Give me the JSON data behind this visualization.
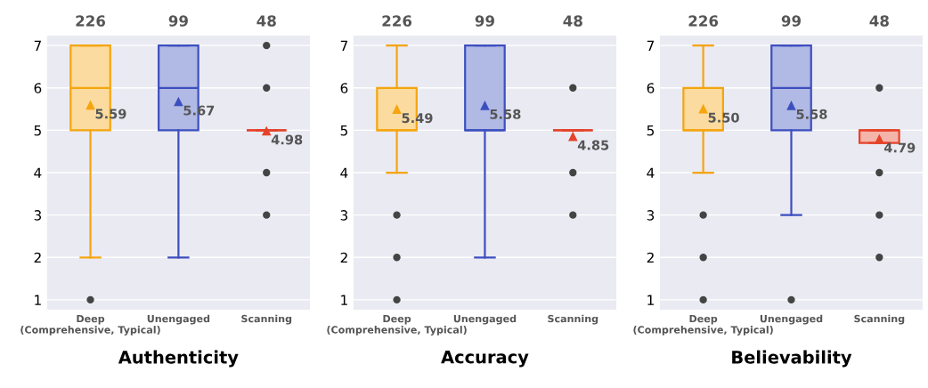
{
  "chart_data": [
    {
      "type": "box",
      "xlabel": "Authenticity",
      "categories": [
        "Deep\n(Comprehensive, Typical)",
        "Unengaged",
        "Scanning"
      ],
      "colors": [
        "#f5a50f",
        "#3d4fbf",
        "#e5432a"
      ],
      "ylim": [
        0.75,
        7.25
      ],
      "yticks": [
        1,
        2,
        3,
        4,
        5,
        6,
        7
      ],
      "grid": "y",
      "marker": "triangle",
      "boxes": [
        {
          "low": 2,
          "q1": 5,
          "median": 6,
          "q3": 7,
          "high": 7,
          "mean": 5.59,
          "outliers": [
            1
          ]
        },
        {
          "low": 2,
          "q1": 5,
          "median": 6,
          "q3": 7,
          "high": 7,
          "mean": 5.67
        },
        {
          "low": 5,
          "q1": 5,
          "median": 5,
          "q3": 5,
          "high": 5,
          "mean": 4.98,
          "outliers": [
            3,
            4,
            6,
            7
          ]
        }
      ],
      "value_labels": [
        "5.59",
        "5.67",
        "4.98"
      ],
      "annotations": [
        "226",
        "99",
        "48"
      ]
    },
    {
      "type": "box",
      "xlabel": "Accuracy",
      "categories": [
        "Deep\n(Comprehensive, Typical)",
        "Unengaged",
        "Scanning"
      ],
      "colors": [
        "#f5a50f",
        "#3d4fbf",
        "#e5432a"
      ],
      "ylim": [
        0.75,
        7.25
      ],
      "yticks": [
        1,
        2,
        3,
        4,
        5,
        6,
        7
      ],
      "grid": "y",
      "marker": "triangle",
      "boxes": [
        {
          "low": 4,
          "q1": 5,
          "median": 5,
          "q3": 6,
          "high": 7,
          "mean": 5.49,
          "outliers": [
            1,
            2,
            3
          ]
        },
        {
          "low": 2,
          "q1": 5,
          "median": 5,
          "q3": 7,
          "high": 7,
          "mean": 5.58
        },
        {
          "low": 5,
          "q1": 5,
          "median": 5,
          "q3": 5,
          "high": 5,
          "mean": 4.85,
          "outliers": [
            3,
            4,
            6
          ]
        }
      ],
      "value_labels": [
        "5.49",
        "5.58",
        "4.85"
      ],
      "annotations": [
        "226",
        "99",
        "48"
      ]
    },
    {
      "type": "box",
      "xlabel": "Believability",
      "categories": [
        "Deep\n(Comprehensive, Typical)",
        "Unengaged",
        "Scanning"
      ],
      "colors": [
        "#f5a50f",
        "#3d4fbf",
        "#e5432a"
      ],
      "ylim": [
        0.75,
        7.25
      ],
      "yticks": [
        1,
        2,
        3,
        4,
        5,
        6,
        7
      ],
      "grid": "y",
      "marker": "triangle",
      "boxes": [
        {
          "low": 4,
          "q1": 5,
          "median": 5,
          "q3": 6,
          "high": 7,
          "mean": 5.5,
          "outliers": [
            1,
            2,
            3
          ]
        },
        {
          "low": 3,
          "q1": 5,
          "median": 6,
          "q3": 7,
          "high": 7,
          "mean": 5.58,
          "outliers": [
            1
          ]
        },
        {
          "low": 4.7,
          "q1": 4.7,
          "median": 5,
          "q3": 5,
          "high": 5,
          "mean": 4.79,
          "outliers": [
            2,
            3,
            4,
            6
          ]
        }
      ],
      "value_labels": [
        "5.50",
        "5.58",
        "4.79"
      ],
      "annotations": [
        "226",
        "99",
        "48"
      ]
    }
  ]
}
